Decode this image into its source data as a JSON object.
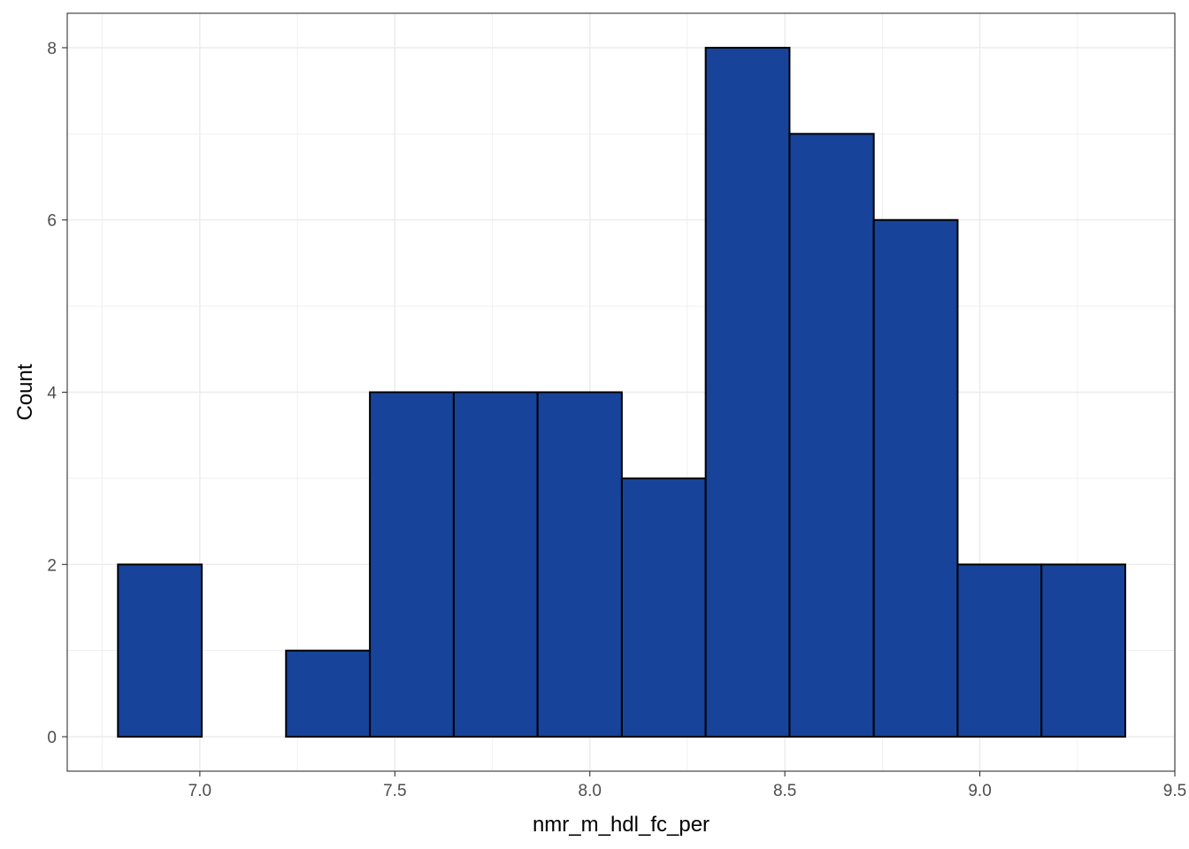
{
  "chart_data": {
    "type": "bar",
    "subtype": "histogram",
    "title": "",
    "xlabel": "nmr_m_hdl_fc_per",
    "ylabel": "Count",
    "bins": [
      {
        "x0": 6.79,
        "x1": 7.005,
        "count": 2
      },
      {
        "x0": 7.005,
        "x1": 7.221,
        "count": 0
      },
      {
        "x0": 7.221,
        "x1": 7.436,
        "count": 1
      },
      {
        "x0": 7.436,
        "x1": 7.651,
        "count": 4
      },
      {
        "x0": 7.651,
        "x1": 7.866,
        "count": 4
      },
      {
        "x0": 7.866,
        "x1": 8.082,
        "count": 4
      },
      {
        "x0": 8.082,
        "x1": 8.297,
        "count": 3
      },
      {
        "x0": 8.297,
        "x1": 8.512,
        "count": 8
      },
      {
        "x0": 8.512,
        "x1": 8.728,
        "count": 7
      },
      {
        "x0": 8.728,
        "x1": 8.943,
        "count": 6
      },
      {
        "x0": 8.943,
        "x1": 9.158,
        "count": 2
      },
      {
        "x0": 9.158,
        "x1": 9.373,
        "count": 2
      }
    ],
    "xlim": [
      6.66,
      9.5
    ],
    "ylim": [
      -0.4,
      8.4
    ],
    "x_ticks": [
      "7.0",
      "7.5",
      "8.0",
      "8.5",
      "9.0",
      "9.5"
    ],
    "y_ticks": [
      "0",
      "2",
      "4",
      "6",
      "8"
    ],
    "grid": true,
    "bar_color": "#18439a",
    "bar_edge_color": "#000000",
    "panel_border_color": "#333333",
    "grid_color": "#ebebeb"
  }
}
